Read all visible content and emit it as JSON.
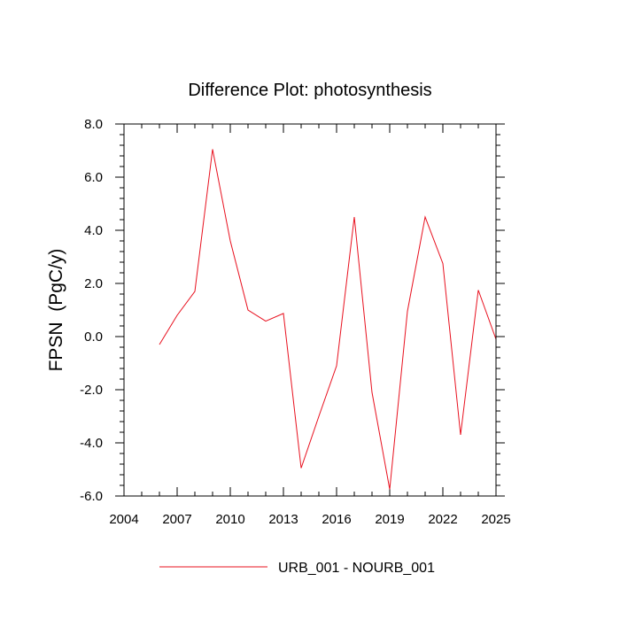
{
  "chart_data": {
    "type": "line",
    "title": "Difference Plot: photosynthesis",
    "ylabel": "FPSN  (PgC/y)",
    "xlabel": "",
    "xlim": [
      2004,
      2025
    ],
    "ylim": [
      -6.0,
      8.0
    ],
    "x_ticks": [
      2004,
      2007,
      2010,
      2013,
      2016,
      2019,
      2022,
      2025
    ],
    "x_tick_labels": [
      "2004",
      "2007",
      "2010",
      "2013",
      "2016",
      "2019",
      "2022",
      "2025"
    ],
    "y_ticks": [
      -6,
      -4,
      -2,
      0,
      2,
      4,
      6,
      8
    ],
    "y_tick_labels": [
      "-6.0",
      "-4.0",
      "-2.0",
      "0.0",
      "2.0",
      "4.0",
      "6.0",
      "8.0"
    ],
    "grid": false,
    "legend_position": "bottom",
    "series": [
      {
        "name": "URB_001 - NOURB_001",
        "color": "#e8101e",
        "x": [
          2006,
          2007,
          2008,
          2009,
          2010,
          2011,
          2012,
          2013,
          2014,
          2015,
          2016,
          2017,
          2018,
          2019,
          2020,
          2021,
          2022,
          2023,
          2024,
          2025
        ],
        "y": [
          -0.3,
          0.8,
          1.7,
          7.05,
          3.6,
          1.0,
          0.58,
          0.87,
          -4.95,
          -3.0,
          -1.1,
          4.5,
          -2.1,
          -5.75,
          0.95,
          4.5,
          2.75,
          -3.7,
          1.75,
          -0.1
        ]
      }
    ]
  }
}
